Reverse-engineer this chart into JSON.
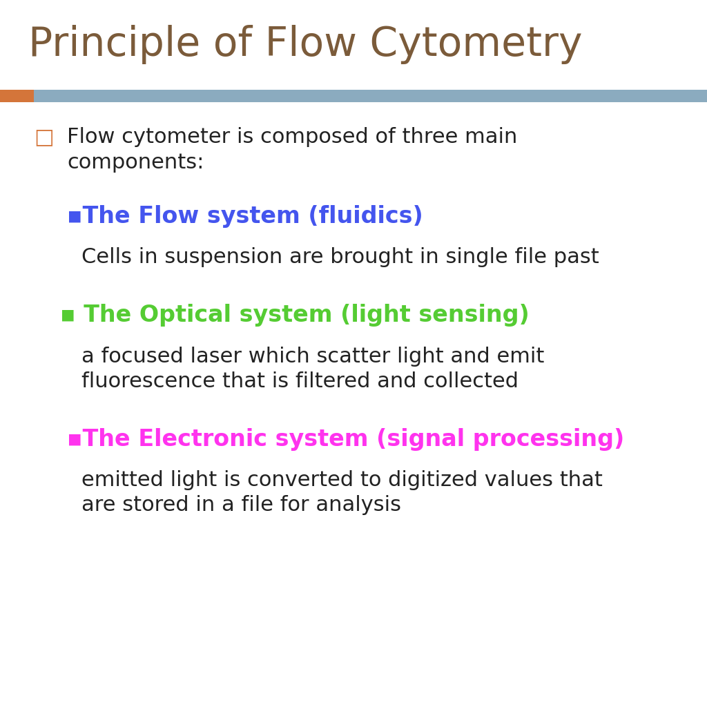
{
  "title": "Principle of Flow Cytometry",
  "title_color": "#7B5B3A",
  "title_fontsize": 42,
  "background_color": "#FFFFFF",
  "divider_bar_color": "#8BABBF",
  "orange_block_color": "#D4753A",
  "bullet1_text": "Flow cytometer is composed of three main\ncomponents:",
  "bullet1_color": "#222222",
  "bullet1_marker_color": "#D4753A",
  "section1_header": "▪The Flow system (fluidics)",
  "section1_header_color": "#4455EE",
  "section1_body": "Cells in suspension are brought in single file past",
  "section1_body_color": "#222222",
  "section2_header": "▪ The Optical system (light sensing)",
  "section2_header_color": "#55CC33",
  "section2_body": "a focused laser which scatter light and emit\nfluorescence that is filtered and collected",
  "section2_body_color": "#222222",
  "section3_header": "▪The Electronic system (signal processing)",
  "section3_header_color": "#FF33EE",
  "section3_body": "emitted light is converted to digitized values that\nare stored in a file for analysis",
  "section3_body_color": "#222222",
  "header_fontsize": 24,
  "body_fontsize": 22,
  "bullet1_fontsize": 22
}
